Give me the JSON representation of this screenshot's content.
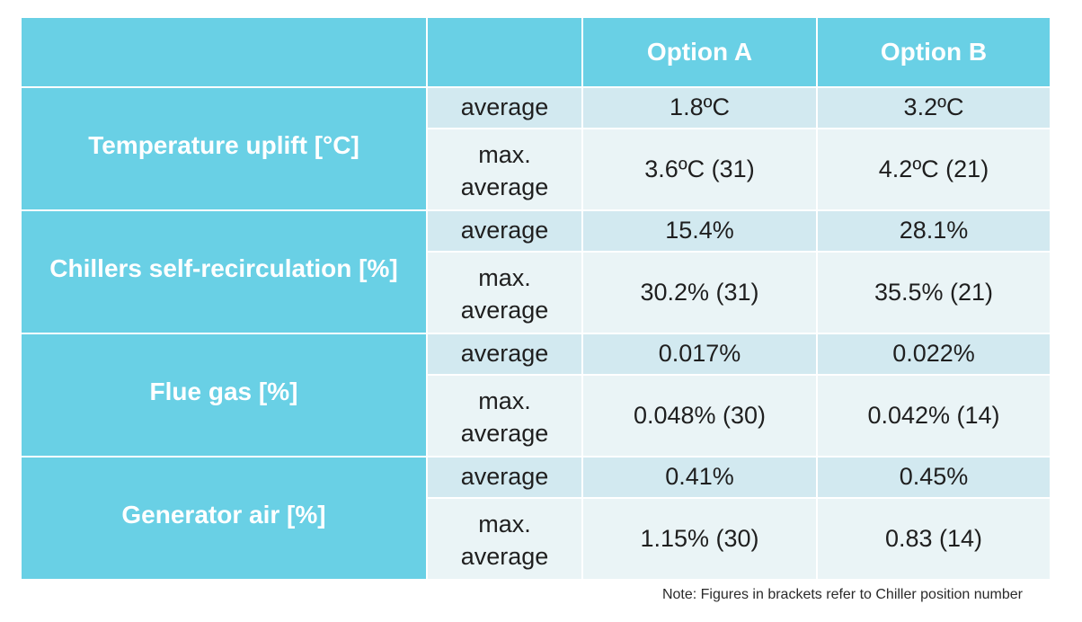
{
  "header": {
    "blank": "",
    "option_a": "Option A",
    "option_b": "Option B"
  },
  "rows": [
    {
      "category": "Temperature uplift [°C]",
      "average_label": "average",
      "max_label": "max.\naverage",
      "option_a_average": "1.8ºC",
      "option_b_average": "3.2ºC",
      "option_a_max": "3.6ºC (31)",
      "option_b_max": "4.2ºC (21)"
    },
    {
      "category": "Chillers self-recirculation [%]",
      "average_label": "average",
      "max_label": "max.\naverage",
      "option_a_average": "15.4%",
      "option_b_average": "28.1%",
      "option_a_max": "30.2% (31)",
      "option_b_max": "35.5% (21)"
    },
    {
      "category": "Flue gas [%]",
      "average_label": "average",
      "max_label": "max.\naverage",
      "option_a_average": "0.017%",
      "option_b_average": "0.022%",
      "option_a_max": "0.048% (30)",
      "option_b_max": "0.042% (14)"
    },
    {
      "category": "Generator air [%]",
      "average_label": "average",
      "max_label": "max.\naverage",
      "option_a_average": "0.41%",
      "option_b_average": "0.45%",
      "option_a_max": "1.15% (30)",
      "option_b_max": "0.83 (14)"
    }
  ],
  "note": "Note: Figures in brackets refer to Chiller position number",
  "colors": {
    "header_blue": "#69d0e5",
    "row_dark": "#d2e9f0",
    "row_light": "#eaf4f6"
  }
}
